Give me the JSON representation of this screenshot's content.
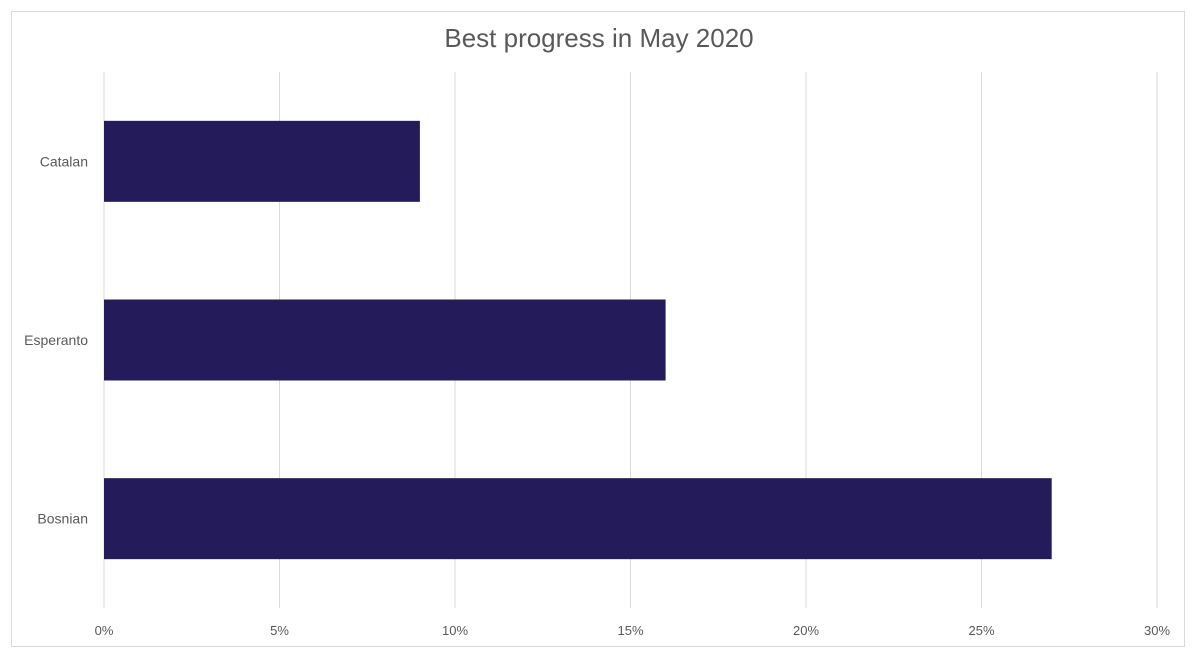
{
  "chart_data": {
    "type": "bar",
    "orientation": "horizontal",
    "title": "Best progress in May 2020",
    "categories": [
      "Catalan",
      "Esperanto",
      "Bosnian"
    ],
    "values": [
      0.09,
      0.16,
      0.27
    ],
    "xlim": [
      0,
      0.3
    ],
    "xticks": [
      0,
      0.05,
      0.1,
      0.15,
      0.2,
      0.25,
      0.3
    ],
    "xtick_labels": [
      "0%",
      "5%",
      "10%",
      "15%",
      "20%",
      "25%",
      "30%"
    ],
    "xlabel": "",
    "ylabel": "",
    "grid": "vertical",
    "legend": "none",
    "bar_color": "#241b5b",
    "grid_color": "#d9d9d9"
  }
}
